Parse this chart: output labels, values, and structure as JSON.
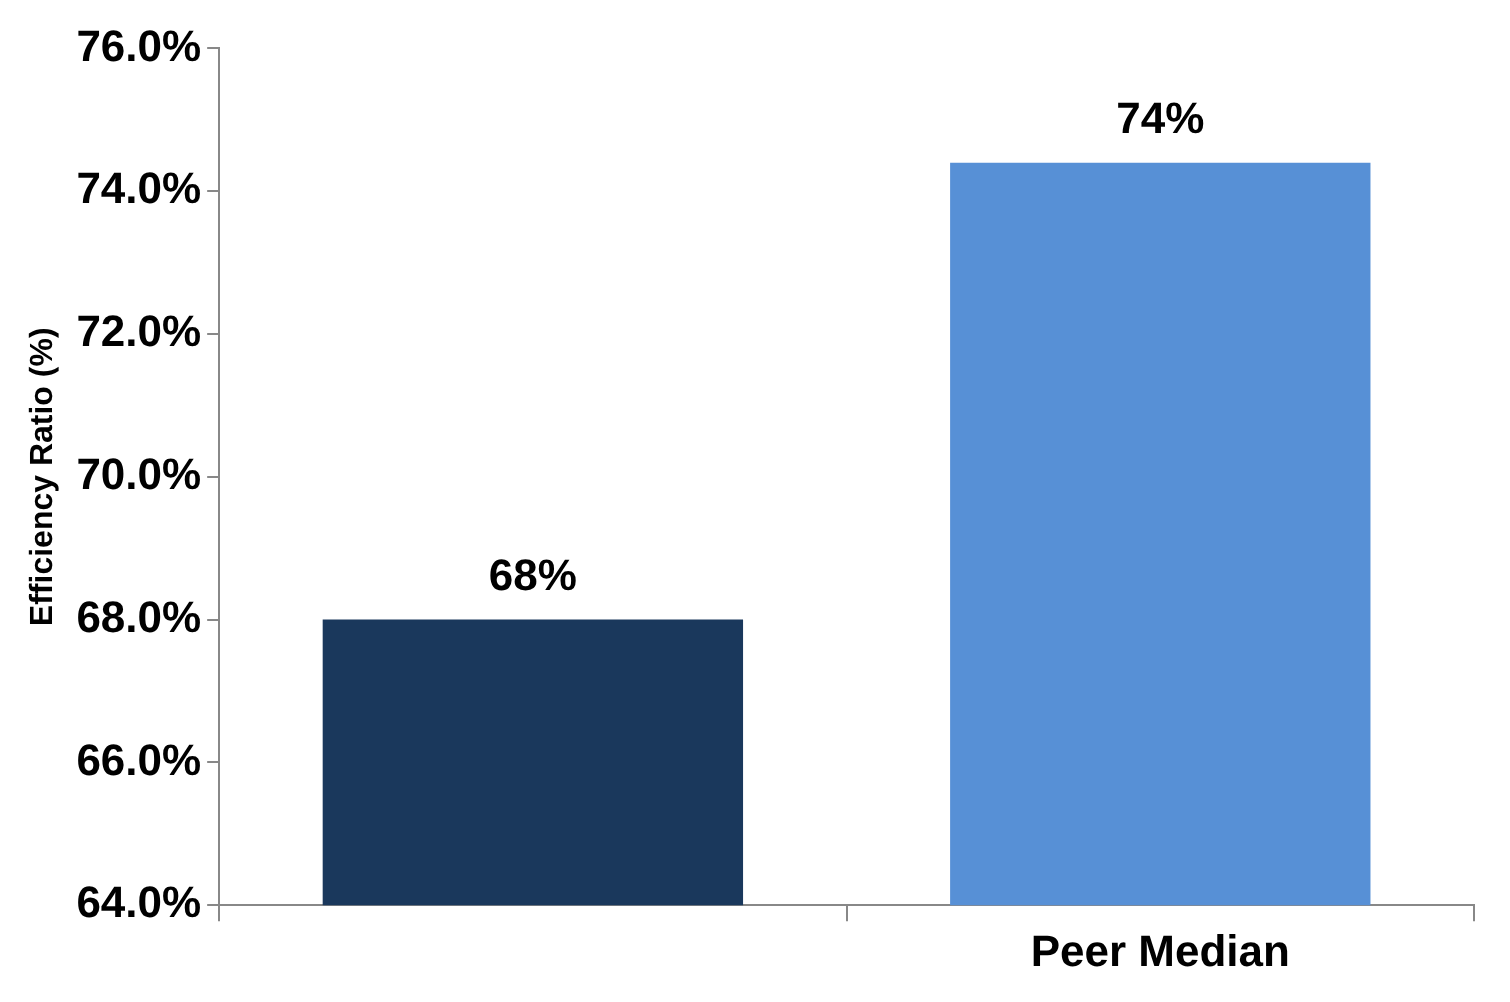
{
  "chart_data": {
    "type": "bar",
    "ylabel": "Efficiency Ratio (%)",
    "categories": [
      null,
      "Peer Median"
    ],
    "values": [
      68.0,
      74.4
    ],
    "colors": [
      "#1a385c",
      "#5790d6"
    ],
    "value_labels": [
      "68%",
      "74%"
    ],
    "ylim": [
      64,
      76
    ],
    "yticks": [
      {
        "value": 64,
        "label": "64.0%"
      },
      {
        "value": 66,
        "label": "66.0%"
      },
      {
        "value": 68,
        "label": "68.0%"
      },
      {
        "value": 70,
        "label": "70.0%"
      },
      {
        "value": 72,
        "label": "72.0%"
      },
      {
        "value": 74,
        "label": "74.0%"
      },
      {
        "value": 76,
        "label": "76.0%"
      }
    ],
    "grid": false,
    "legend": false
  }
}
